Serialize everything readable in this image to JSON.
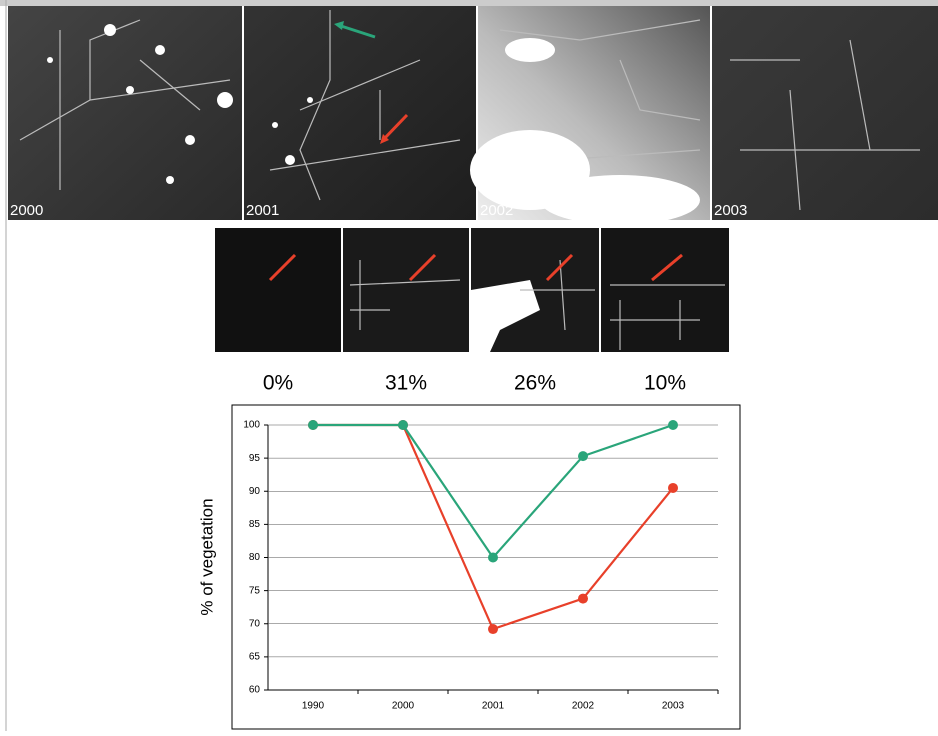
{
  "panels": {
    "years": [
      "2000",
      "2001",
      "2002",
      "2003"
    ],
    "percentages": [
      "0%",
      "31%",
      "26%",
      "10%"
    ]
  },
  "chart_data": {
    "type": "line",
    "y_label": "% of vegetation",
    "categories": [
      "1990",
      "2000",
      "2001",
      "2002",
      "2003"
    ],
    "series": [
      {
        "color": "#2aa57a",
        "values": [
          100,
          100,
          80,
          95.3,
          100
        ]
      },
      {
        "color": "#e8402a",
        "values": [
          100,
          100,
          69.2,
          73.8,
          90.5
        ]
      }
    ],
    "ylim": [
      60,
      100
    ],
    "yticks": [
      60,
      65,
      70,
      75,
      80,
      85,
      90,
      95,
      100
    ],
    "grid": true
  }
}
